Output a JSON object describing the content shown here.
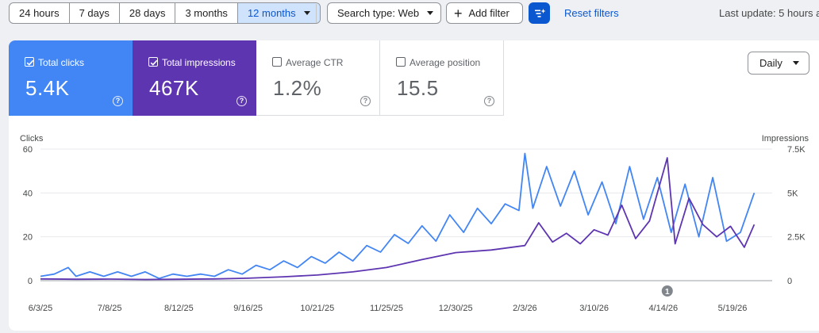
{
  "toolbar": {
    "ranges": [
      "24 hours",
      "7 days",
      "28 days",
      "3 months",
      "12 months"
    ],
    "search_type": "Search type: Web",
    "add_filter": "Add filter",
    "reset": "Reset filters",
    "last_update": "Last update: 5 hours a"
  },
  "metrics": {
    "clicks": {
      "label": "Total clicks",
      "value": "5.4K",
      "checked": true,
      "color": "#4285f4"
    },
    "impressions": {
      "label": "Total impressions",
      "value": "467K",
      "checked": true,
      "color": "#5e35b1"
    },
    "ctr": {
      "label": "Average CTR",
      "value": "1.2%",
      "checked": false
    },
    "position": {
      "label": "Average position",
      "value": "15.5",
      "checked": false
    },
    "help": "?"
  },
  "granularity": "Daily",
  "chart_data": {
    "type": "line",
    "ylabel": "Clicks",
    "y2label": "Impressions",
    "ylim": [
      0,
      60
    ],
    "y2lim": [
      0,
      7500
    ],
    "yticks": [
      "0",
      "20",
      "40",
      "60"
    ],
    "y2ticks": [
      "0",
      "2.5K",
      "5K",
      "7.5K"
    ],
    "x_tick_labels": [
      "6/3/25",
      "7/8/25",
      "8/12/25",
      "9/16/25",
      "10/21/25",
      "11/25/25",
      "12/30/25",
      "2/3/26",
      "3/10/26",
      "4/14/26",
      "5/19/26"
    ],
    "grid": true,
    "annotation": {
      "label": "1",
      "date": "4/16/26"
    },
    "series": [
      {
        "name": "Clicks",
        "axis": "left",
        "color": "#4285f4",
        "points": [
          [
            "6/3/25",
            2
          ],
          [
            "6/10/25",
            3
          ],
          [
            "6/17/25",
            6
          ],
          [
            "6/21/25",
            2
          ],
          [
            "6/28/25",
            4
          ],
          [
            "7/5/25",
            2
          ],
          [
            "7/12/25",
            4
          ],
          [
            "7/19/25",
            2
          ],
          [
            "7/26/25",
            4
          ],
          [
            "8/2/25",
            1
          ],
          [
            "8/9/25",
            3
          ],
          [
            "8/16/25",
            2
          ],
          [
            "8/23/25",
            3
          ],
          [
            "8/30/25",
            2
          ],
          [
            "9/6/25",
            5
          ],
          [
            "9/13/25",
            3
          ],
          [
            "9/20/25",
            7
          ],
          [
            "9/27/25",
            5
          ],
          [
            "10/4/25",
            9
          ],
          [
            "10/11/25",
            6
          ],
          [
            "10/18/25",
            11
          ],
          [
            "10/25/25",
            8
          ],
          [
            "11/1/25",
            13
          ],
          [
            "11/8/25",
            9
          ],
          [
            "11/15/25",
            16
          ],
          [
            "11/22/25",
            13
          ],
          [
            "11/29/25",
            21
          ],
          [
            "12/6/25",
            17
          ],
          [
            "12/13/25",
            25
          ],
          [
            "12/20/25",
            18
          ],
          [
            "12/27/25",
            30
          ],
          [
            "1/3/26",
            22
          ],
          [
            "1/10/26",
            33
          ],
          [
            "1/17/26",
            26
          ],
          [
            "1/24/26",
            35
          ],
          [
            "1/31/26",
            32
          ],
          [
            "2/3/26",
            58
          ],
          [
            "2/7/26",
            33
          ],
          [
            "2/14/26",
            52
          ],
          [
            "2/21/26",
            34
          ],
          [
            "2/28/26",
            50
          ],
          [
            "3/7/26",
            30
          ],
          [
            "3/14/26",
            45
          ],
          [
            "3/21/26",
            26
          ],
          [
            "3/28/26",
            52
          ],
          [
            "4/4/26",
            28
          ],
          [
            "4/11/26",
            47
          ],
          [
            "4/18/26",
            22
          ],
          [
            "4/25/26",
            44
          ],
          [
            "5/2/26",
            20
          ],
          [
            "5/9/26",
            47
          ],
          [
            "5/16/26",
            18
          ],
          [
            "5/23/26",
            22
          ],
          [
            "5/30/26",
            40
          ]
        ]
      },
      {
        "name": "Impressions",
        "axis": "right",
        "color": "#5e35b1",
        "points": [
          [
            "6/3/25",
            100
          ],
          [
            "6/21/25",
            80
          ],
          [
            "7/8/25",
            90
          ],
          [
            "7/26/25",
            70
          ],
          [
            "8/12/25",
            80
          ],
          [
            "8/30/25",
            100
          ],
          [
            "9/16/25",
            140
          ],
          [
            "10/4/25",
            220
          ],
          [
            "10/21/25",
            320
          ],
          [
            "11/8/25",
            500
          ],
          [
            "11/25/25",
            750
          ],
          [
            "12/13/25",
            1200
          ],
          [
            "12/30/25",
            1600
          ],
          [
            "1/17/26",
            1750
          ],
          [
            "2/3/26",
            2000
          ],
          [
            "2/10/26",
            3300
          ],
          [
            "2/17/26",
            2200
          ],
          [
            "2/24/26",
            2700
          ],
          [
            "3/3/26",
            2100
          ],
          [
            "3/10/26",
            2900
          ],
          [
            "3/17/26",
            2600
          ],
          [
            "3/24/26",
            4300
          ],
          [
            "3/31/26",
            2400
          ],
          [
            "4/7/26",
            3400
          ],
          [
            "4/16/26",
            7000
          ],
          [
            "4/20/26",
            2100
          ],
          [
            "4/27/26",
            4700
          ],
          [
            "5/4/26",
            3200
          ],
          [
            "5/11/26",
            2500
          ],
          [
            "5/18/26",
            3100
          ],
          [
            "5/25/26",
            1900
          ],
          [
            "5/30/26",
            3200
          ]
        ]
      }
    ]
  }
}
